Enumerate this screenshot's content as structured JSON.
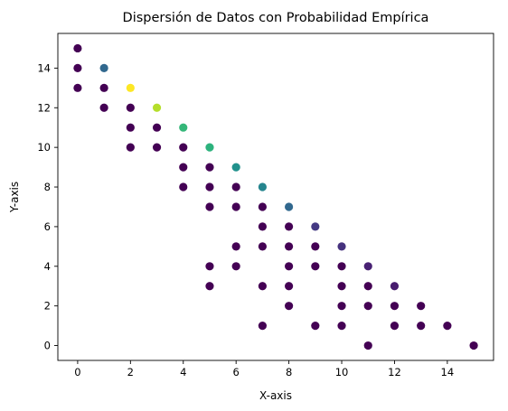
{
  "chart_data": {
    "type": "scatter",
    "title": "Dispersión de Datos con Probabilidad Empírica",
    "xlabel": "X-axis",
    "ylabel": "Y-axis",
    "xlim": [
      -0.75,
      15.75
    ],
    "ylim": [
      -0.75,
      15.75
    ],
    "xticks": [
      0,
      2,
      4,
      6,
      8,
      10,
      12,
      14
    ],
    "yticks": [
      0,
      2,
      4,
      6,
      8,
      10,
      12,
      14
    ],
    "grid": false,
    "colormap": "viridis",
    "points": [
      {
        "x": 0,
        "y": 15,
        "color": "#440154"
      },
      {
        "x": 0,
        "y": 14,
        "color": "#440154"
      },
      {
        "x": 0,
        "y": 13,
        "color": "#440154"
      },
      {
        "x": 1,
        "y": 14,
        "color": "#31688e"
      },
      {
        "x": 1,
        "y": 13,
        "color": "#440154"
      },
      {
        "x": 1,
        "y": 12,
        "color": "#440154"
      },
      {
        "x": 2,
        "y": 13,
        "color": "#fde725"
      },
      {
        "x": 2,
        "y": 12,
        "color": "#440154"
      },
      {
        "x": 2,
        "y": 11,
        "color": "#440154"
      },
      {
        "x": 2,
        "y": 10,
        "color": "#440154"
      },
      {
        "x": 3,
        "y": 12,
        "color": "#b5de2b"
      },
      {
        "x": 3,
        "y": 11,
        "color": "#440154"
      },
      {
        "x": 3,
        "y": 10,
        "color": "#440154"
      },
      {
        "x": 4,
        "y": 11,
        "color": "#35b779"
      },
      {
        "x": 4,
        "y": 10,
        "color": "#440154"
      },
      {
        "x": 4,
        "y": 9,
        "color": "#440154"
      },
      {
        "x": 4,
        "y": 8,
        "color": "#440154"
      },
      {
        "x": 5,
        "y": 10,
        "color": "#2db27d"
      },
      {
        "x": 5,
        "y": 9,
        "color": "#440154"
      },
      {
        "x": 5,
        "y": 8,
        "color": "#440154"
      },
      {
        "x": 5,
        "y": 7,
        "color": "#440154"
      },
      {
        "x": 5,
        "y": 4,
        "color": "#440154"
      },
      {
        "x": 5,
        "y": 3,
        "color": "#440154"
      },
      {
        "x": 6,
        "y": 9,
        "color": "#21918c"
      },
      {
        "x": 6,
        "y": 8,
        "color": "#440154"
      },
      {
        "x": 6,
        "y": 7,
        "color": "#440154"
      },
      {
        "x": 6,
        "y": 5,
        "color": "#440154"
      },
      {
        "x": 6,
        "y": 4,
        "color": "#440154"
      },
      {
        "x": 7,
        "y": 8,
        "color": "#25858e"
      },
      {
        "x": 7,
        "y": 7,
        "color": "#440154"
      },
      {
        "x": 7,
        "y": 6,
        "color": "#440154"
      },
      {
        "x": 7,
        "y": 5,
        "color": "#440154"
      },
      {
        "x": 7,
        "y": 3,
        "color": "#440154"
      },
      {
        "x": 7,
        "y": 1,
        "color": "#440154"
      },
      {
        "x": 8,
        "y": 7,
        "color": "#31688e"
      },
      {
        "x": 8,
        "y": 6,
        "color": "#440154"
      },
      {
        "x": 8,
        "y": 5,
        "color": "#440154"
      },
      {
        "x": 8,
        "y": 4,
        "color": "#440154"
      },
      {
        "x": 8,
        "y": 3,
        "color": "#440154"
      },
      {
        "x": 8,
        "y": 2,
        "color": "#440154"
      },
      {
        "x": 9,
        "y": 6,
        "color": "#443983"
      },
      {
        "x": 9,
        "y": 5,
        "color": "#440154"
      },
      {
        "x": 9,
        "y": 4,
        "color": "#440154"
      },
      {
        "x": 9,
        "y": 1,
        "color": "#440154"
      },
      {
        "x": 10,
        "y": 5,
        "color": "#46327e"
      },
      {
        "x": 10,
        "y": 4,
        "color": "#440154"
      },
      {
        "x": 10,
        "y": 3,
        "color": "#440154"
      },
      {
        "x": 10,
        "y": 2,
        "color": "#440154"
      },
      {
        "x": 10,
        "y": 1,
        "color": "#440154"
      },
      {
        "x": 11,
        "y": 4,
        "color": "#482173"
      },
      {
        "x": 11,
        "y": 3,
        "color": "#440154"
      },
      {
        "x": 11,
        "y": 2,
        "color": "#440154"
      },
      {
        "x": 11,
        "y": 0,
        "color": "#440154"
      },
      {
        "x": 12,
        "y": 3,
        "color": "#481c6e"
      },
      {
        "x": 12,
        "y": 2,
        "color": "#440154"
      },
      {
        "x": 12,
        "y": 1,
        "color": "#440154"
      },
      {
        "x": 13,
        "y": 2,
        "color": "#440154"
      },
      {
        "x": 13,
        "y": 1,
        "color": "#440154"
      },
      {
        "x": 14,
        "y": 1,
        "color": "#440154"
      },
      {
        "x": 15,
        "y": 0,
        "color": "#440154"
      }
    ]
  }
}
